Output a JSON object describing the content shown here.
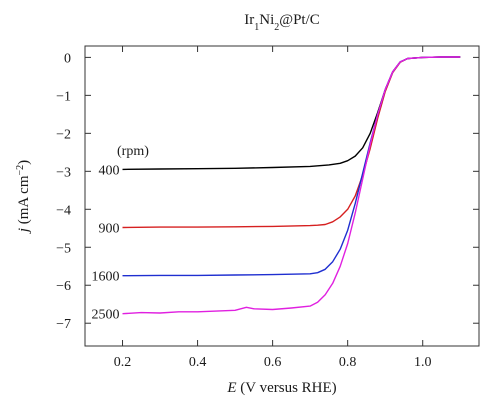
{
  "chart_data": {
    "type": "line",
    "title": {
      "base": "Ir",
      "s1": "1",
      "mid": "Ni",
      "s2": "2",
      "tail": "@Pt/C"
    },
    "xlabel": {
      "var": "E",
      "rest": " (V versus RHE)"
    },
    "ylabel": {
      "var": "j",
      "rest": " (mA cm",
      "sup": "−2",
      "close": ")"
    },
    "xlim": [
      0.1,
      1.15
    ],
    "ylim": [
      -7.6,
      0.3
    ],
    "xticks": [
      0.2,
      0.4,
      0.6,
      0.8,
      1.0
    ],
    "xtick_labels": [
      "0.2",
      "0.4",
      "0.6",
      "0.8",
      "1.0"
    ],
    "yticks": [
      0,
      -1,
      -2,
      -3,
      -4,
      -5,
      -6,
      -7
    ],
    "ytick_labels": [
      "0",
      "−1",
      "−2",
      "−3",
      "−4",
      "−5",
      "−6",
      "−7"
    ],
    "legend_header": "(rpm)",
    "grid": false,
    "series": [
      {
        "name": "400",
        "color": "#000000",
        "x": [
          0.2,
          0.3,
          0.4,
          0.5,
          0.6,
          0.7,
          0.75,
          0.78,
          0.8,
          0.82,
          0.84,
          0.86,
          0.88,
          0.9,
          0.92,
          0.94,
          0.96,
          1.0,
          1.05,
          1.1
        ],
        "y": [
          -2.95,
          -2.94,
          -2.93,
          -2.92,
          -2.9,
          -2.87,
          -2.83,
          -2.79,
          -2.72,
          -2.6,
          -2.38,
          -2.0,
          -1.45,
          -0.85,
          -0.38,
          -0.12,
          -0.03,
          0.0,
          0.01,
          0.01
        ]
      },
      {
        "name": "900",
        "color": "#d62020",
        "x": [
          0.2,
          0.3,
          0.4,
          0.5,
          0.6,
          0.7,
          0.72,
          0.74,
          0.76,
          0.78,
          0.8,
          0.82,
          0.84,
          0.86,
          0.88,
          0.9,
          0.92,
          0.94,
          0.96,
          1.0,
          1.05,
          1.1
        ],
        "y": [
          -4.48,
          -4.47,
          -4.47,
          -4.46,
          -4.45,
          -4.43,
          -4.42,
          -4.4,
          -4.33,
          -4.2,
          -4.0,
          -3.65,
          -3.1,
          -2.4,
          -1.6,
          -0.9,
          -0.4,
          -0.13,
          -0.03,
          0.0,
          0.01,
          0.01
        ]
      },
      {
        "name": "1600",
        "color": "#1f2fd0",
        "x": [
          0.2,
          0.3,
          0.4,
          0.5,
          0.6,
          0.7,
          0.72,
          0.74,
          0.76,
          0.78,
          0.8,
          0.82,
          0.84,
          0.86,
          0.88,
          0.9,
          0.92,
          0.94,
          0.96,
          1.0,
          1.05,
          1.1
        ],
        "y": [
          -5.75,
          -5.74,
          -5.74,
          -5.73,
          -5.72,
          -5.7,
          -5.67,
          -5.58,
          -5.38,
          -5.05,
          -4.55,
          -3.85,
          -3.05,
          -2.25,
          -1.5,
          -0.85,
          -0.38,
          -0.12,
          -0.03,
          0.0,
          0.01,
          0.01
        ]
      },
      {
        "name": "2500",
        "color": "#e020e0",
        "x": [
          0.2,
          0.25,
          0.3,
          0.35,
          0.4,
          0.45,
          0.5,
          0.53,
          0.55,
          0.6,
          0.65,
          0.7,
          0.72,
          0.74,
          0.76,
          0.78,
          0.8,
          0.82,
          0.84,
          0.86,
          0.88,
          0.9,
          0.92,
          0.94,
          0.96,
          1.0,
          1.05,
          1.1
        ],
        "y": [
          -6.75,
          -6.72,
          -6.73,
          -6.7,
          -6.7,
          -6.68,
          -6.66,
          -6.58,
          -6.62,
          -6.64,
          -6.6,
          -6.55,
          -6.45,
          -6.25,
          -5.95,
          -5.5,
          -4.9,
          -4.1,
          -3.2,
          -2.3,
          -1.5,
          -0.85,
          -0.38,
          -0.12,
          -0.03,
          0.0,
          0.01,
          0.01
        ]
      }
    ]
  }
}
